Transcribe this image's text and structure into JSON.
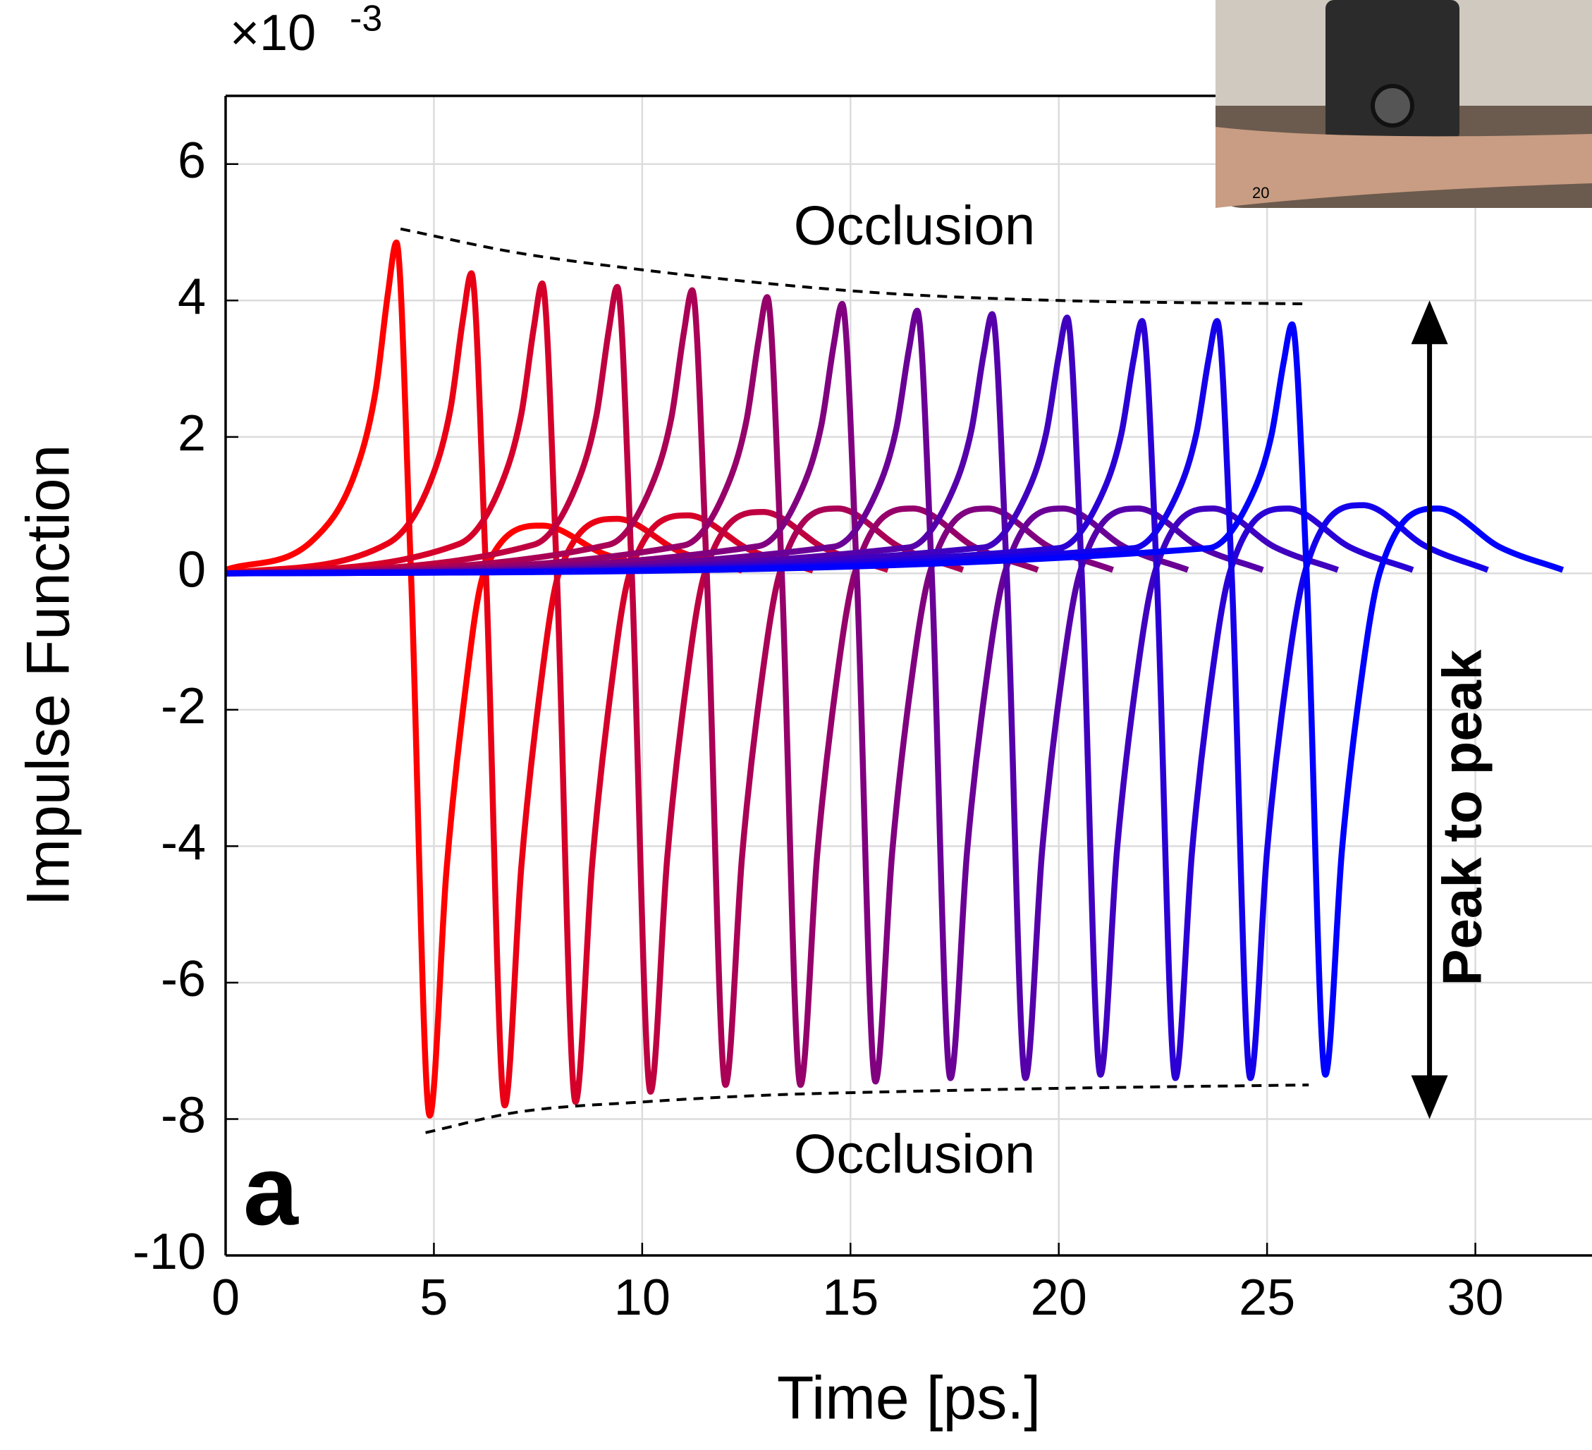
{
  "chart_data": {
    "type": "line",
    "x_label": "Time [ps.]",
    "y_label": "Impulse Function",
    "y_multiplier": "×10",
    "y_exponent": "-3",
    "panel_label": "a",
    "annotations": [
      "Occlusion",
      "Occlusion",
      "Peak to peak"
    ],
    "inset_label": "20",
    "xlim": [
      0,
      32.8
    ],
    "ylim": [
      -10,
      7
    ],
    "xticks": [
      0,
      5,
      10,
      15,
      20,
      25,
      30
    ],
    "yticks": [
      -10,
      -8,
      -6,
      -4,
      -2,
      0,
      2,
      4,
      6
    ],
    "grid": true,
    "series": [
      {
        "color": "#ff0000",
        "x": [
          0,
          2.1,
          3.1,
          3.6,
          3.9,
          4.1,
          4.45,
          4.9,
          5.3,
          5.7,
          6.2,
          7.6,
          9.1,
          10.6
        ],
        "values": [
          0.05,
          0.49,
          1.46,
          2.67,
          4.12,
          4.85,
          0,
          -7.95,
          -4.37,
          -1.99,
          0,
          0.7,
          0.28,
          0.04
        ]
      },
      {
        "color": "#ea0015",
        "x": [
          0,
          3.9,
          4.9,
          5.4,
          5.7,
          5.9,
          6.25,
          6.7,
          7.1,
          7.5,
          8.0,
          9.4,
          10.9,
          12.4
        ],
        "values": [
          0,
          0.44,
          1.32,
          2.42,
          3.74,
          4.4,
          0,
          -7.8,
          -4.29,
          -1.95,
          0,
          0.8,
          0.32,
          0.04
        ]
      },
      {
        "color": "#d5002a",
        "x": [
          0,
          5.6,
          6.6,
          7.1,
          7.4,
          7.6,
          7.95,
          8.4,
          8.8,
          9.2,
          9.7,
          11.1,
          12.6,
          14.1
        ],
        "values": [
          0,
          0.43,
          1.28,
          2.34,
          3.61,
          4.25,
          0,
          -7.75,
          -4.26,
          -1.94,
          0,
          0.85,
          0.34,
          0.04
        ]
      },
      {
        "color": "#bf0040",
        "x": [
          0,
          7.4,
          8.4,
          8.9,
          9.2,
          9.4,
          9.75,
          10.2,
          10.6,
          11.0,
          11.5,
          12.9,
          14.4,
          15.9
        ],
        "values": [
          0,
          0.42,
          1.26,
          2.31,
          3.57,
          4.2,
          0,
          -7.6,
          -4.18,
          -1.9,
          0,
          0.9,
          0.36,
          0.05
        ]
      },
      {
        "color": "#aa0055",
        "x": [
          0,
          9.2,
          10.2,
          10.7,
          11.0,
          11.2,
          11.55,
          12.0,
          12.4,
          12.8,
          13.3,
          14.7,
          16.2,
          17.7
        ],
        "values": [
          0,
          0.42,
          1.25,
          2.28,
          3.53,
          4.15,
          0,
          -7.5,
          -4.13,
          -1.88,
          0,
          0.95,
          0.38,
          0.05
        ]
      },
      {
        "color": "#95006a",
        "x": [
          0,
          11.0,
          12.0,
          12.5,
          12.8,
          13.0,
          13.35,
          13.8,
          14.2,
          14.6,
          15.1,
          16.5,
          18.0,
          19.5
        ],
        "values": [
          0,
          0.41,
          1.22,
          2.23,
          3.44,
          4.05,
          0,
          -7.5,
          -4.13,
          -1.88,
          0,
          0.95,
          0.38,
          0.05
        ]
      },
      {
        "color": "#800080",
        "x": [
          0,
          12.8,
          13.8,
          14.3,
          14.6,
          14.8,
          15.15,
          15.6,
          16.0,
          16.4,
          16.9,
          18.3,
          19.8,
          21.3
        ],
        "values": [
          0,
          0.4,
          1.19,
          2.17,
          3.36,
          3.95,
          0,
          -7.45,
          -4.1,
          -1.86,
          0,
          0.95,
          0.38,
          0.05
        ]
      },
      {
        "color": "#6a0095",
        "x": [
          0,
          14.6,
          15.6,
          16.1,
          16.4,
          16.6,
          16.95,
          17.4,
          17.8,
          18.2,
          18.7,
          20.1,
          21.6,
          23.1
        ],
        "values": [
          0,
          0.39,
          1.16,
          2.12,
          3.27,
          3.85,
          0,
          -7.4,
          -4.07,
          -1.85,
          0,
          0.95,
          0.38,
          0.05
        ]
      },
      {
        "color": "#5500aa",
        "x": [
          0,
          16.4,
          17.4,
          17.9,
          18.2,
          18.4,
          18.75,
          19.2,
          19.6,
          20.0,
          20.5,
          21.9,
          23.4,
          24.9
        ],
        "values": [
          0,
          0.38,
          1.14,
          2.09,
          3.23,
          3.8,
          0,
          -7.4,
          -4.07,
          -1.85,
          0,
          0.95,
          0.38,
          0.05
        ]
      },
      {
        "color": "#4000bf",
        "x": [
          0,
          18.2,
          19.2,
          19.7,
          20.0,
          20.2,
          20.55,
          21.0,
          21.4,
          21.8,
          22.3,
          23.7,
          25.2,
          26.7
        ],
        "values": [
          0,
          0.38,
          1.13,
          2.06,
          3.19,
          3.75,
          0,
          -7.35,
          -4.04,
          -1.84,
          0,
          0.95,
          0.38,
          0.05
        ]
      },
      {
        "color": "#2a00d5",
        "x": [
          0,
          20.0,
          21.0,
          21.5,
          21.8,
          22.0,
          22.35,
          22.8,
          23.2,
          23.6,
          24.1,
          25.5,
          27.0,
          28.5
        ],
        "values": [
          0,
          0.37,
          1.11,
          2.04,
          3.15,
          3.7,
          0,
          -7.4,
          -4.07,
          -1.85,
          0,
          0.95,
          0.38,
          0.05
        ]
      },
      {
        "color": "#1500ea",
        "x": [
          0,
          21.8,
          22.8,
          23.3,
          23.6,
          23.8,
          24.15,
          24.6,
          25.0,
          25.4,
          25.9,
          27.3,
          28.8,
          30.3
        ],
        "values": [
          0,
          0.37,
          1.11,
          2.04,
          3.15,
          3.7,
          0,
          -7.4,
          -4.07,
          -1.85,
          0,
          1.0,
          0.4,
          0.05
        ]
      },
      {
        "color": "#0000ff",
        "x": [
          0,
          23.6,
          24.6,
          25.1,
          25.4,
          25.6,
          25.95,
          26.4,
          26.8,
          27.2,
          27.7,
          29.1,
          30.6,
          32.1
        ],
        "values": [
          0,
          0.37,
          1.1,
          2.01,
          3.1,
          3.65,
          0,
          -7.35,
          -4.04,
          -1.84,
          0,
          0.95,
          0.38,
          0.05
        ]
      }
    ],
    "envelopes": [
      {
        "x": [
          4.2,
          7,
          10,
          13,
          16,
          20,
          26
        ],
        "values": [
          5.05,
          4.7,
          4.45,
          4.25,
          4.1,
          4.0,
          3.95
        ]
      },
      {
        "x": [
          4.8,
          7,
          10,
          13,
          16,
          20,
          26
        ],
        "values": [
          -8.2,
          -7.9,
          -7.75,
          -7.65,
          -7.6,
          -7.55,
          -7.5
        ]
      }
    ],
    "arrow": {
      "x": 28.9,
      "y": [
        4,
        -8
      ]
    }
  }
}
